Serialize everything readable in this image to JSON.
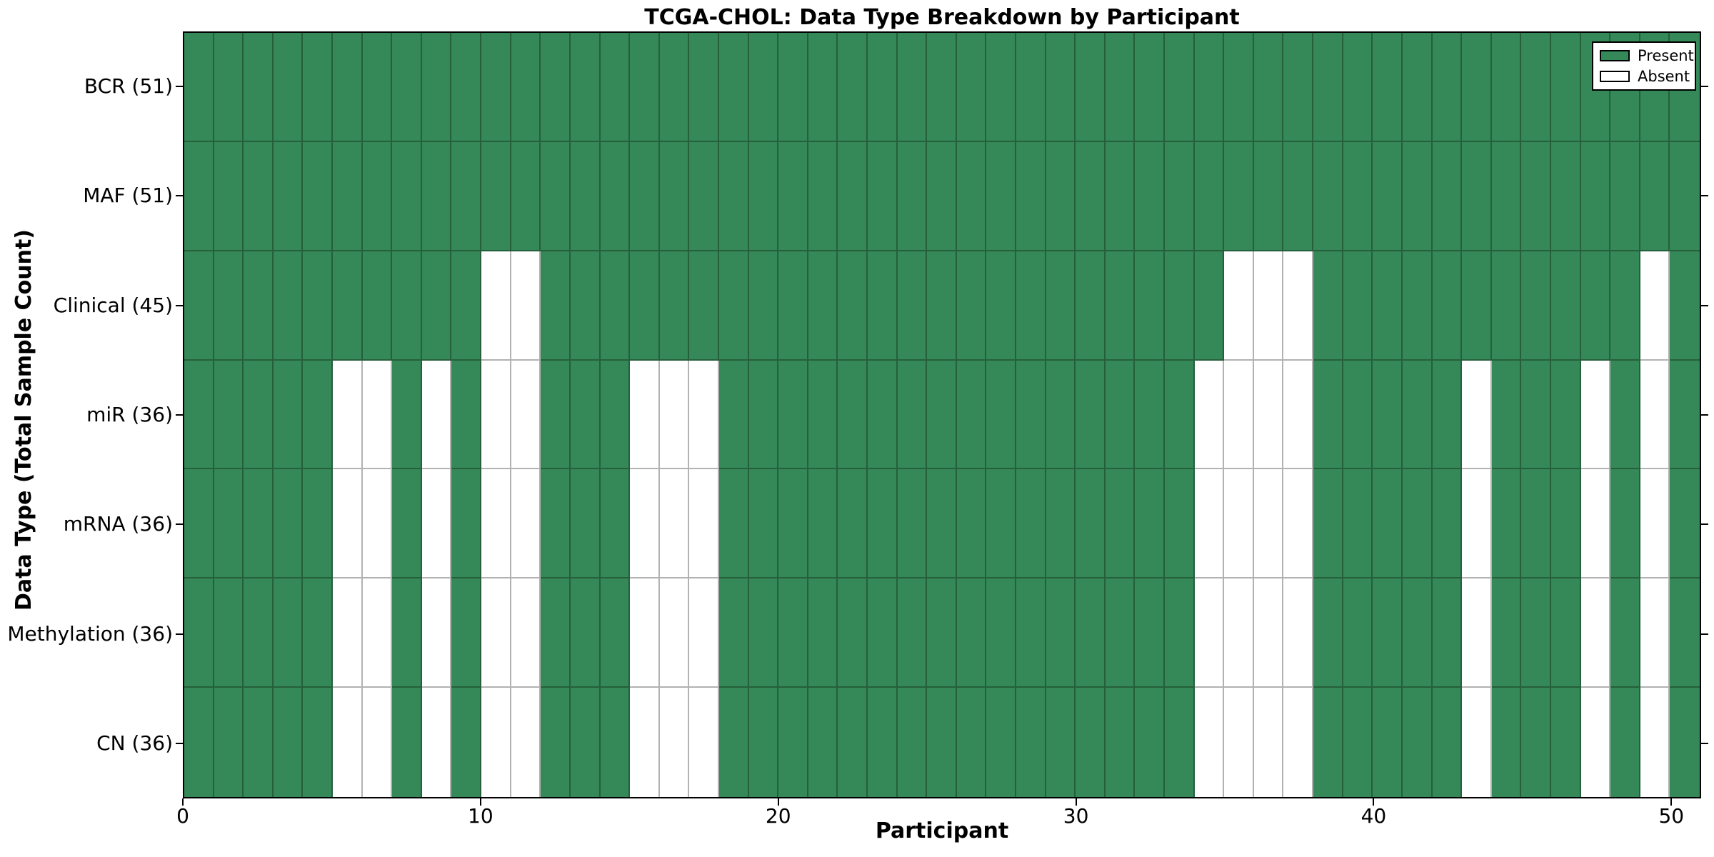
{
  "title": "TCGA-CHOL: Data Type Breakdown by Participant",
  "x_axis": {
    "label": "Participant",
    "tick_values": [
      0,
      10,
      20,
      30,
      40,
      50
    ]
  },
  "y_axis": {
    "label": "Data Type (Total Sample Count)"
  },
  "legend": {
    "present_label": "Present",
    "absent_label": "Absent"
  },
  "colors": {
    "present": "#358857",
    "absent": "#ffffff",
    "grid_line": "rgba(0,0,0,0.3)",
    "spine": "#000000"
  },
  "chart_data": {
    "type": "heatmap",
    "title": "TCGA-CHOL: Data Type Breakdown by Participant",
    "xlabel": "Participant",
    "ylabel": "Data Type (Total Sample Count)",
    "x_range": [
      0,
      51
    ],
    "n_participants": 51,
    "x_tick_values": [
      0,
      10,
      20,
      30,
      40,
      50
    ],
    "legend_entries": [
      "Present",
      "Absent"
    ],
    "cell_states": {
      "present": 1,
      "absent": 0
    },
    "rows": [
      {
        "label": "BCR",
        "total": 51,
        "tick_label": "BCR (51)",
        "absent_participants": []
      },
      {
        "label": "MAF",
        "total": 51,
        "tick_label": "MAF (51)",
        "absent_participants": []
      },
      {
        "label": "Clinical",
        "total": 45,
        "tick_label": "Clinical (45)",
        "absent_participants": [
          10,
          11,
          35,
          36,
          37,
          49
        ]
      },
      {
        "label": "miR",
        "total": 36,
        "tick_label": "miR (36)",
        "absent_participants": [
          5,
          6,
          8,
          10,
          11,
          15,
          16,
          17,
          34,
          35,
          36,
          37,
          43,
          47,
          49
        ]
      },
      {
        "label": "mRNA",
        "total": 36,
        "tick_label": "mRNA (36)",
        "absent_participants": [
          5,
          6,
          8,
          10,
          11,
          15,
          16,
          17,
          34,
          35,
          36,
          37,
          43,
          47,
          49
        ]
      },
      {
        "label": "Methylation",
        "total": 36,
        "tick_label": "Methylation (36)",
        "absent_participants": [
          5,
          6,
          8,
          10,
          11,
          15,
          16,
          17,
          34,
          35,
          36,
          37,
          43,
          47,
          49
        ]
      },
      {
        "label": "CN",
        "total": 36,
        "tick_label": "CN (36)",
        "absent_participants": [
          5,
          6,
          8,
          10,
          11,
          15,
          16,
          17,
          34,
          35,
          36,
          37,
          43,
          47,
          49
        ]
      }
    ]
  }
}
